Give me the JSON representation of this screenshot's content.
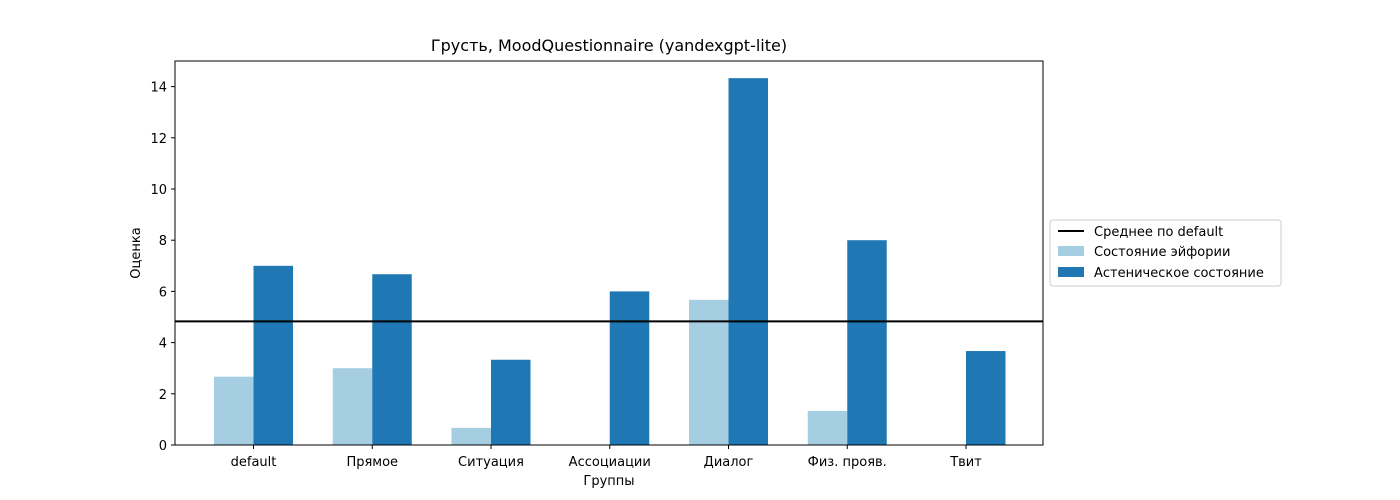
{
  "chart_data": {
    "type": "bar",
    "title": "Грусть, MoodQuestionnaire (yandexgpt-lite)",
    "xlabel": "Группы",
    "ylabel": "Оценка",
    "categories": [
      "default",
      "Прямое",
      "Ситуация",
      "Ассоциации",
      "Диалог",
      "Физ. прояв.",
      "Твит"
    ],
    "series": [
      {
        "name": "Состояние эйфории",
        "color": "#a6cee3",
        "values": [
          2.67,
          3.0,
          0.67,
          0.0,
          5.67,
          1.33,
          0.0
        ]
      },
      {
        "name": "Астеническое состояние",
        "color": "#1f78b4",
        "values": [
          7.0,
          6.67,
          3.33,
          6.0,
          14.33,
          8.0,
          3.67
        ]
      }
    ],
    "reference_line": {
      "name": "Среднее по default",
      "value": 4.83,
      "color": "#000000"
    },
    "ylim": [
      0,
      15
    ],
    "yticks": [
      0,
      2,
      4,
      6,
      8,
      10,
      12,
      14
    ],
    "grid": false,
    "legend_position": "right"
  }
}
